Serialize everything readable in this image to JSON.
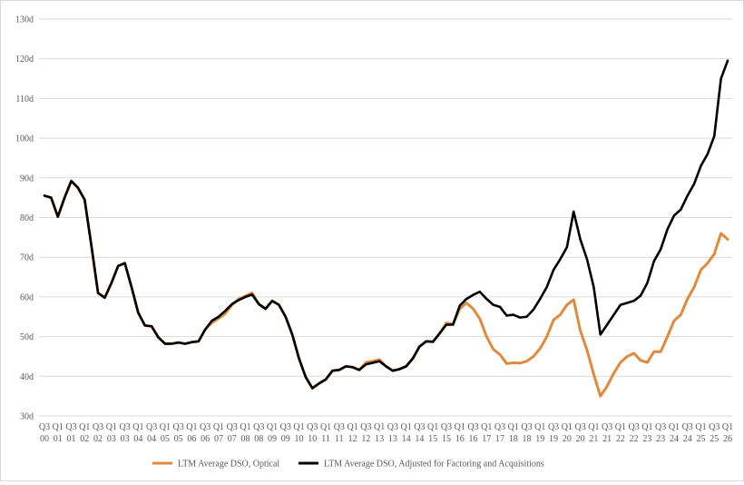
{
  "chart_data": {
    "type": "line",
    "title": "",
    "xlabel": "",
    "ylabel": "",
    "ylim": [
      30,
      130
    ],
    "y_ticks": [
      "30d",
      "40d",
      "50d",
      "60d",
      "70d",
      "80d",
      "90d",
      "100d",
      "110d",
      "120d",
      "130d"
    ],
    "grid": "horizontal",
    "legend_position": "bottom",
    "x_tick_labels": [
      [
        "Q3",
        "00"
      ],
      [
        "Q1",
        "01"
      ],
      [
        "Q3",
        "01"
      ],
      [
        "Q1",
        "02"
      ],
      [
        "Q3",
        "02"
      ],
      [
        "Q1",
        "03"
      ],
      [
        "Q3",
        "03"
      ],
      [
        "Q1",
        "04"
      ],
      [
        "Q3",
        "04"
      ],
      [
        "Q1",
        "05"
      ],
      [
        "Q3",
        "05"
      ],
      [
        "Q1",
        "06"
      ],
      [
        "Q3",
        "06"
      ],
      [
        "Q1",
        "07"
      ],
      [
        "Q3",
        "07"
      ],
      [
        "Q1",
        "08"
      ],
      [
        "Q3",
        "08"
      ],
      [
        "Q1",
        "09"
      ],
      [
        "Q3",
        "09"
      ],
      [
        "Q1",
        "10"
      ],
      [
        "Q3",
        "10"
      ],
      [
        "Q1",
        "11"
      ],
      [
        "Q3",
        "11"
      ],
      [
        "Q1",
        "12"
      ],
      [
        "Q3",
        "12"
      ],
      [
        "Q1",
        "13"
      ],
      [
        "Q3",
        "13"
      ],
      [
        "Q1",
        "14"
      ],
      [
        "Q3",
        "14"
      ],
      [
        "Q1",
        "15"
      ],
      [
        "Q3",
        "15"
      ],
      [
        "Q1",
        "16"
      ],
      [
        "Q3",
        "16"
      ],
      [
        "Q1",
        "17"
      ],
      [
        "Q3",
        "17"
      ],
      [
        "Q1",
        "18"
      ],
      [
        "Q3",
        "18"
      ],
      [
        "Q1",
        "19"
      ],
      [
        "Q3",
        "19"
      ],
      [
        "Q1",
        "20"
      ],
      [
        "Q3",
        "20"
      ],
      [
        "Q1",
        "21"
      ],
      [
        "Q3",
        "21"
      ],
      [
        "Q1",
        "22"
      ],
      [
        "Q3",
        "22"
      ],
      [
        "Q1",
        "23"
      ],
      [
        "Q3",
        "23"
      ],
      [
        "Q1",
        "24"
      ],
      [
        "Q3",
        "24"
      ],
      [
        "Q1",
        "25"
      ],
      [
        "Q3",
        "25"
      ],
      [
        "Q1",
        "26"
      ]
    ],
    "series": [
      {
        "name": "LTM Average DSO, Optical",
        "color": "#e08a3c",
        "values": [
          85.5,
          85.0,
          80.2,
          85.0,
          89.2,
          87.5,
          84.5,
          73.0,
          61.0,
          59.8,
          63.5,
          67.8,
          68.5,
          62.5,
          56.0,
          52.8,
          52.6,
          49.8,
          48.2,
          48.2,
          48.5,
          48.2,
          48.6,
          48.8,
          51.8,
          53.5,
          54.6,
          55.8,
          58.0,
          59.5,
          60.2,
          61.0,
          58.2,
          57.0,
          59.0,
          58.0,
          55.0,
          50.5,
          44.5,
          39.8,
          37.0,
          38.2,
          39.2,
          41.4,
          41.6,
          42.5,
          42.3,
          41.6,
          43.5,
          43.8,
          44.2,
          42.5,
          41.4,
          41.8,
          42.5,
          44.5,
          47.5,
          48.8,
          48.7,
          50.8,
          53.4,
          53.2,
          57.0,
          58.5,
          57.0,
          54.5,
          50.0,
          46.8,
          45.5,
          43.2,
          43.4,
          43.3,
          43.8,
          45.0,
          47.0,
          50.0,
          54.2,
          55.5,
          58.0,
          59.3,
          51.5,
          46.6,
          40.5,
          35.0,
          37.5,
          40.8,
          43.5,
          45.0,
          45.8,
          44.0,
          43.5,
          46.2,
          46.2,
          50.0,
          54.0,
          55.5,
          59.5,
          62.5,
          66.8,
          68.5,
          70.8,
          76.0,
          74.5
        ]
      },
      {
        "name": "LTM Average DSO, Adjusted for Factoring and Acquisitions",
        "color": "#000000",
        "values": [
          85.5,
          85.0,
          80.2,
          85.0,
          89.2,
          87.5,
          84.5,
          73.0,
          61.0,
          59.8,
          63.5,
          67.8,
          68.5,
          62.5,
          56.0,
          52.8,
          52.6,
          49.8,
          48.2,
          48.2,
          48.5,
          48.2,
          48.6,
          48.8,
          51.8,
          54.0,
          55.0,
          56.5,
          58.2,
          59.2,
          60.0,
          60.6,
          58.2,
          57.0,
          59.0,
          58.0,
          55.0,
          50.5,
          44.5,
          39.8,
          37.0,
          38.2,
          39.2,
          41.4,
          41.6,
          42.5,
          42.3,
          41.6,
          43.0,
          43.4,
          43.8,
          42.5,
          41.4,
          41.8,
          42.5,
          44.5,
          47.5,
          48.8,
          48.7,
          50.8,
          53.0,
          53.0,
          57.8,
          59.5,
          60.5,
          61.3,
          59.5,
          58.0,
          57.5,
          55.3,
          55.5,
          54.8,
          55.0,
          56.8,
          59.5,
          62.5,
          66.8,
          69.5,
          72.5,
          81.5,
          74.5,
          69.5,
          62.5,
          50.5,
          53.0,
          55.5,
          58.0,
          58.5,
          59.0,
          60.3,
          63.5,
          69.0,
          72.0,
          77.0,
          80.5,
          82.0,
          85.5,
          88.5,
          93.0,
          96.0,
          100.5,
          115.0,
          119.5
        ]
      }
    ]
  }
}
